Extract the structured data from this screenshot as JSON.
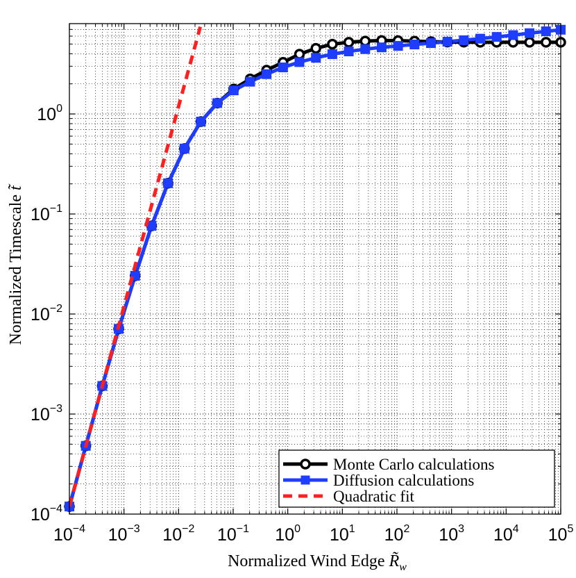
{
  "chart_data": {
    "type": "line",
    "xscale": "log",
    "yscale": "log",
    "xlim": [
      0.0001,
      100000
    ],
    "ylim": [
      0.0001,
      8
    ],
    "grid": true,
    "legend_position": "bottom-right",
    "xlabel": "Normalized Wind Edge R̃w",
    "ylabel": "Normalized Timescale t̃",
    "xlabel_main": "Normalized Wind Edge ",
    "xlabel_symbol": "R̃",
    "xlabel_subscript": "w",
    "ylabel_main": "Normalized Timescale ",
    "ylabel_symbol": "t̃",
    "xticks": [
      {
        "value": 0.0001,
        "base": "10",
        "exp": "−4"
      },
      {
        "value": 0.001,
        "base": "10",
        "exp": "−3"
      },
      {
        "value": 0.01,
        "base": "10",
        "exp": "−2"
      },
      {
        "value": 0.1,
        "base": "10",
        "exp": "−1"
      },
      {
        "value": 1,
        "base": "10",
        "exp": "0"
      },
      {
        "value": 10,
        "base": "10",
        "exp": "1"
      },
      {
        "value": 100,
        "base": "10",
        "exp": "2"
      },
      {
        "value": 1000,
        "base": "10",
        "exp": "3"
      },
      {
        "value": 10000,
        "base": "10",
        "exp": "4"
      },
      {
        "value": 100000,
        "base": "10",
        "exp": "5"
      }
    ],
    "yticks": [
      {
        "value": 0.0001,
        "base": "10",
        "exp": "−4"
      },
      {
        "value": 0.001,
        "base": "10",
        "exp": "−3"
      },
      {
        "value": 0.01,
        "base": "10",
        "exp": "−2"
      },
      {
        "value": 0.1,
        "base": "10",
        "exp": "−1"
      },
      {
        "value": 1,
        "base": "10",
        "exp": "0"
      }
    ],
    "x": [
      0.0001,
      0.0002,
      0.0004,
      0.0008,
      0.0016,
      0.0032,
      0.0064,
      0.0128,
      0.0256,
      0.0512,
      0.1024,
      0.2048,
      0.4096,
      0.8192,
      1.6384,
      3.2768,
      6.5536,
      13.1072,
      26.2144,
      52.4288,
      104.8576,
      209.7152,
      419.4304,
      838.8608,
      1677.7216,
      3355.4432,
      6710.8864,
      13421.7728,
      26843.5456,
      53687.0912,
      100000
    ],
    "series": [
      {
        "name": "Monte Carlo calculations",
        "color": "#000000",
        "marker": "circle",
        "values": [
          0.000119,
          0.000481,
          0.00191,
          0.00709,
          0.0241,
          0.0761,
          0.203,
          0.451,
          0.839,
          1.283,
          1.776,
          2.24,
          2.74,
          3.28,
          3.96,
          4.53,
          4.98,
          5.21,
          5.35,
          5.42,
          5.41,
          5.34,
          5.28,
          5.24,
          5.22,
          5.21,
          5.21,
          5.21,
          5.21,
          5.21,
          5.21
        ]
      },
      {
        "name": "Diffusion calculations",
        "color": "#1f3dff",
        "marker": "square",
        "values": [
          0.000119,
          0.000481,
          0.00191,
          0.00709,
          0.0241,
          0.0761,
          0.203,
          0.451,
          0.839,
          1.283,
          1.72,
          2.1,
          2.5,
          2.92,
          3.3,
          3.64,
          3.96,
          4.22,
          4.45,
          4.63,
          4.79,
          4.95,
          5.11,
          5.28,
          5.46,
          5.66,
          5.89,
          6.14,
          6.42,
          6.7,
          6.95
        ]
      },
      {
        "name": "Quadratic fit",
        "color": "#ff1f1f",
        "style": "dashed",
        "x": [
          0.0001,
          0.025
        ],
        "values": [
          0.000119,
          7.44
        ]
      }
    ]
  }
}
